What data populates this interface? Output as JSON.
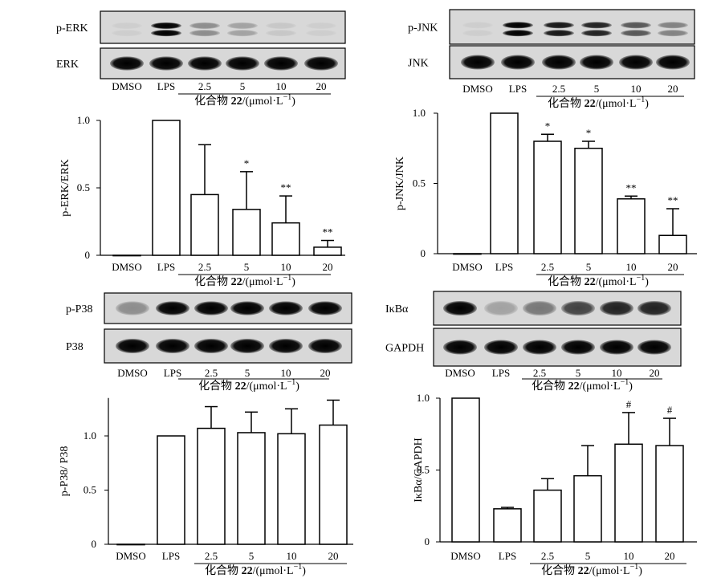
{
  "categories": [
    "DMSO",
    "LPS",
    "2.5",
    "5",
    "10",
    "20"
  ],
  "compound_label": {
    "prefix": "化合物 ",
    "bold": "22",
    "unit": "/(μmol·L",
    "sup": "−1",
    "close": ")"
  },
  "blots": [
    {
      "id": "erk",
      "rows": [
        {
          "label": "p-ERK",
          "intensity": [
            0.05,
            1.0,
            0.35,
            0.25,
            0.08,
            0.05
          ]
        },
        {
          "label": "ERK",
          "intensity": [
            1,
            1,
            1,
            1,
            1,
            1
          ]
        }
      ]
    },
    {
      "id": "jnk",
      "rows": [
        {
          "label": "p-JNK",
          "intensity": [
            0.05,
            1.0,
            0.9,
            0.85,
            0.6,
            0.4
          ]
        },
        {
          "label": "JNK",
          "intensity": [
            1,
            1,
            1,
            1,
            1,
            1
          ]
        }
      ]
    },
    {
      "id": "p38",
      "rows": [
        {
          "label": "p-P38",
          "intensity": [
            0.35,
            1.0,
            1.0,
            1.0,
            1.0,
            1.0
          ]
        },
        {
          "label": "P38",
          "intensity": [
            1,
            1,
            1,
            1,
            1,
            1
          ]
        }
      ]
    },
    {
      "id": "ikb",
      "rows": [
        {
          "label": "IκBα",
          "intensity": [
            1.0,
            0.25,
            0.45,
            0.7,
            0.85,
            0.85
          ]
        },
        {
          "label": "GAPDH",
          "intensity": [
            1,
            1,
            1,
            1,
            1,
            1
          ]
        }
      ]
    }
  ],
  "chart_data": [
    {
      "type": "bar",
      "panel": "top-left",
      "ylabel": "p-ERK/ERK",
      "ylim": [
        0,
        1.0
      ],
      "yticks": [
        0,
        0.5,
        1.0
      ],
      "ytick_labels": [
        "0",
        "0.5",
        "1.0"
      ],
      "categories": [
        "DMSO",
        "LPS",
        "2.5",
        "5",
        "10",
        "20"
      ],
      "values": [
        0,
        1.0,
        0.45,
        0.34,
        0.24,
        0.06
      ],
      "errors": [
        0,
        0,
        0.37,
        0.28,
        0.2,
        0.05
      ],
      "annotations": [
        "",
        "",
        "",
        "*",
        "**",
        "**"
      ]
    },
    {
      "type": "bar",
      "panel": "top-right",
      "ylabel": "p-JNK/JNK",
      "ylim": [
        0,
        1.0
      ],
      "yticks": [
        0,
        0.5,
        1.0
      ],
      "ytick_labels": [
        "0",
        "0.5",
        "1.0"
      ],
      "categories": [
        "DMSO",
        "LPS",
        "2.5",
        "5",
        "10",
        "20"
      ],
      "values": [
        0,
        1.0,
        0.8,
        0.75,
        0.39,
        0.13
      ],
      "errors": [
        0,
        0,
        0.05,
        0.05,
        0.02,
        0.19
      ],
      "annotations": [
        "",
        "",
        "*",
        "*",
        "**",
        "**"
      ]
    },
    {
      "type": "bar",
      "panel": "bottom-left",
      "ylabel": "p-P38/ P38",
      "ylim": [
        0,
        1.35
      ],
      "yticks": [
        0,
        0.5,
        1.0
      ],
      "ytick_labels": [
        "0",
        "0.5",
        "1.0"
      ],
      "categories": [
        "DMSO",
        "LPS",
        "2.5",
        "5",
        "10",
        "20"
      ],
      "values": [
        0,
        1.0,
        1.07,
        1.03,
        1.02,
        1.1
      ],
      "errors": [
        0,
        0,
        0.2,
        0.19,
        0.23,
        0.23
      ],
      "annotations": [
        "",
        "",
        "",
        "",
        "",
        ""
      ]
    },
    {
      "type": "bar",
      "panel": "bottom-right",
      "ylabel": "IκBα/GAPDH",
      "ylim": [
        0,
        1.0
      ],
      "yticks": [
        0,
        0.5,
        1.0
      ],
      "ytick_labels": [
        "0",
        "0.5",
        "1.0"
      ],
      "categories": [
        "DMSO",
        "LPS",
        "2.5",
        "5",
        "10",
        "20"
      ],
      "values": [
        1.0,
        0.23,
        0.36,
        0.46,
        0.68,
        0.67
      ],
      "errors": [
        0,
        0.01,
        0.08,
        0.21,
        0.22,
        0.19
      ],
      "annotations": [
        "",
        "",
        "",
        "",
        "#",
        "#"
      ]
    }
  ]
}
